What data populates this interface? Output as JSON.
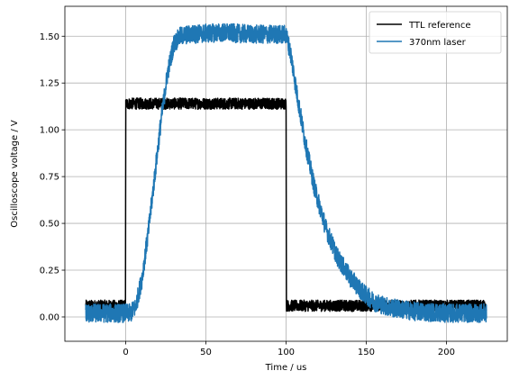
{
  "chart_data": {
    "type": "line",
    "xlabel": "Time / us",
    "ylabel": "Oscilloscope voltage / V",
    "xlim": [
      -38,
      238
    ],
    "ylim": [
      -0.13,
      1.66
    ],
    "xticks": [
      0,
      50,
      100,
      150,
      200
    ],
    "yticks": [
      0.0,
      0.25,
      0.5,
      0.75,
      1.0,
      1.25,
      1.5
    ],
    "xtick_labels": [
      "0",
      "50",
      "100",
      "150",
      "200"
    ],
    "ytick_labels": [
      "0.00",
      "0.25",
      "0.50",
      "0.75",
      "1.00",
      "1.25",
      "1.50"
    ],
    "grid": true,
    "legend_position": "top-right",
    "series": [
      {
        "name": "TTL reference",
        "color": "#000000",
        "x": [
          -25,
          -0.2,
          0,
          100,
          100.2,
          225
        ],
        "y": [
          0.06,
          0.06,
          1.14,
          1.14,
          0.06,
          0.06
        ],
        "noise": 0.03
      },
      {
        "name": "370nm laser",
        "color": "#1f77b4",
        "x": [
          -25,
          3,
          6,
          10,
          14,
          18,
          22,
          26,
          30,
          34,
          40,
          60,
          80,
          95,
          100,
          103,
          107,
          112,
          118,
          125,
          132,
          140,
          148,
          155,
          165,
          180,
          200,
          225
        ],
        "y": [
          0.02,
          0.02,
          0.05,
          0.2,
          0.45,
          0.75,
          1.05,
          1.3,
          1.46,
          1.5,
          1.51,
          1.52,
          1.51,
          1.51,
          1.51,
          1.4,
          1.18,
          0.93,
          0.68,
          0.47,
          0.32,
          0.21,
          0.13,
          0.08,
          0.05,
          0.03,
          0.02,
          0.02
        ],
        "noise": 0.05
      }
    ]
  }
}
